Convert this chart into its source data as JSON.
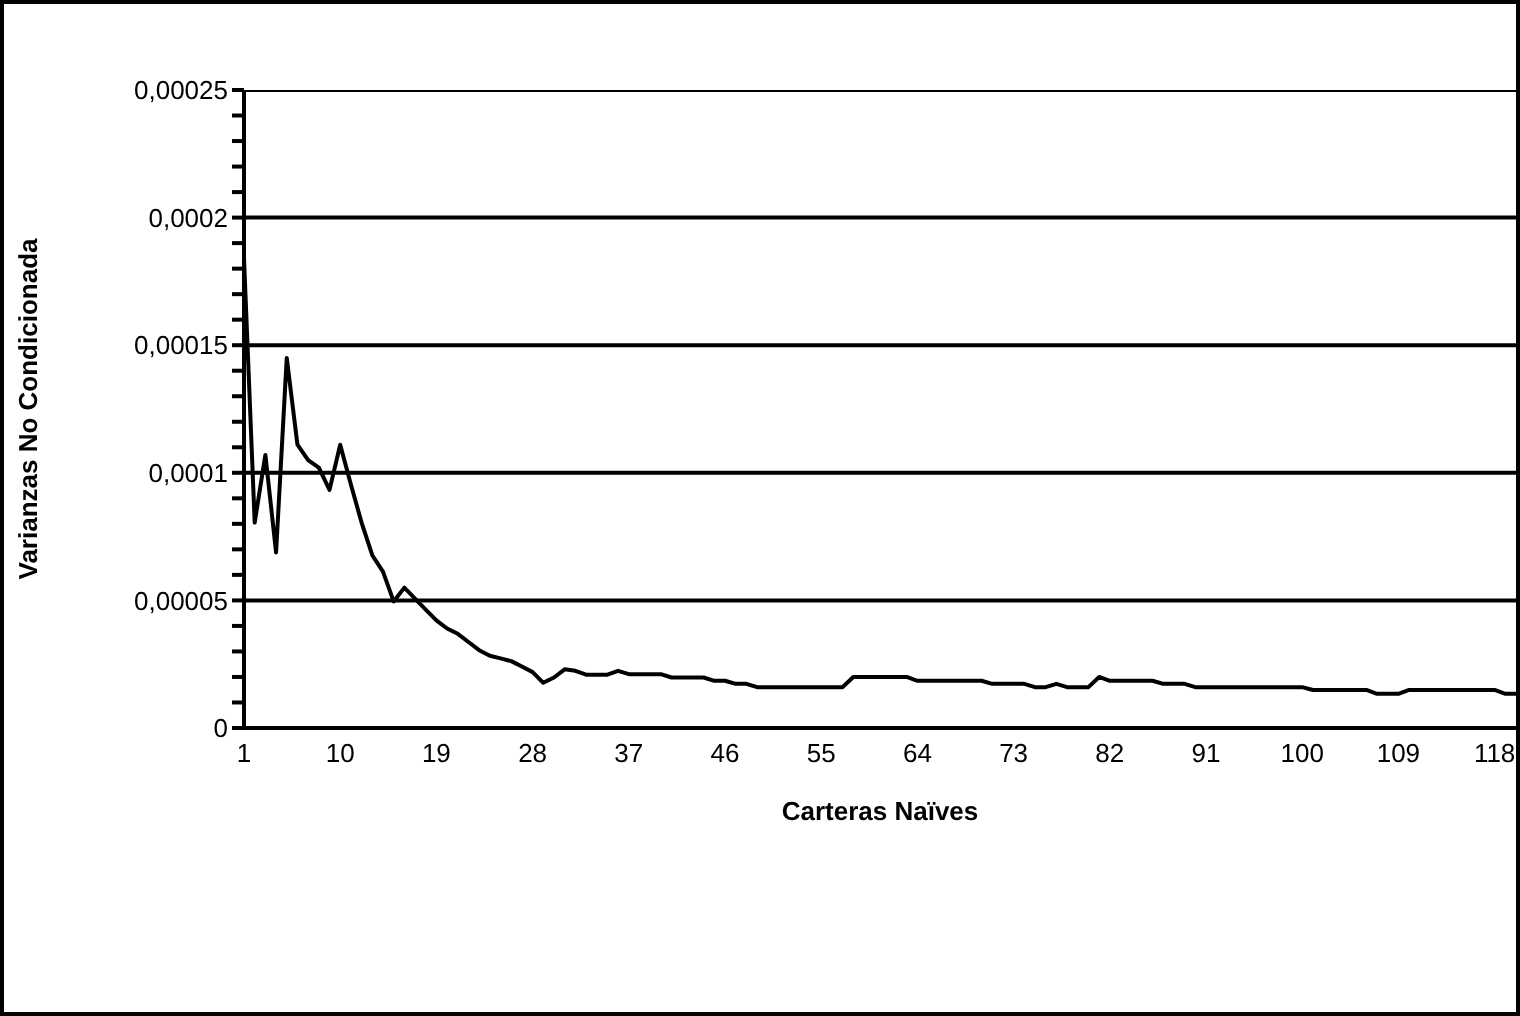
{
  "chart_data": {
    "type": "line",
    "xlabel": "Carteras Naïves",
    "ylabel": "Varianzas No Condicionada",
    "categories": [
      "1",
      null,
      null,
      null,
      null,
      null,
      null,
      null,
      null,
      "10",
      null,
      null,
      null,
      null,
      null,
      null,
      null,
      null,
      "19",
      null,
      null,
      null,
      null,
      null,
      null,
      null,
      null,
      "28",
      null,
      null,
      null,
      null,
      null,
      null,
      null,
      null,
      "37",
      null,
      null,
      null,
      null,
      null,
      null,
      null,
      null,
      "46",
      null,
      null,
      null,
      null,
      null,
      null,
      null,
      null,
      "55",
      null,
      null,
      null,
      null,
      null,
      null,
      null,
      null,
      "64",
      null,
      null,
      null,
      null,
      null,
      null,
      null,
      null,
      "73",
      null,
      null,
      null,
      null,
      null,
      null,
      null,
      null,
      "82",
      null,
      null,
      null,
      null,
      null,
      null,
      null,
      null,
      "91",
      null,
      null,
      null,
      null,
      null,
      null,
      null,
      null,
      "100",
      null,
      null,
      null,
      null,
      null,
      null,
      null,
      null,
      "109",
      null,
      null,
      null,
      null,
      null,
      null,
      null,
      null,
      "118",
      null,
      null
    ],
    "series": [
      {
        "color": "#000000",
        "values": [
          0.000184,
          8.05e-05,
          0.000107,
          6.88e-05,
          0.000145,
          0.000111,
          0.000105,
          0.000102,
          9.33e-05,
          0.000111,
          9.54e-05,
          8.05e-05,
          6.77e-05,
          6.13e-05,
          4.96e-05,
          5.5e-05,
          5.07e-05,
          4.64e-05,
          4.22e-05,
          3.9e-05,
          3.69e-05,
          3.37e-05,
          3.05e-05,
          2.83e-05,
          2.73e-05,
          2.62e-05,
          2.41e-05,
          2.19e-05,
          1.77e-05,
          1.98e-05,
          2.3e-05,
          2.24e-05,
          2.09e-05,
          2.09e-05,
          2.09e-05,
          2.24e-05,
          2.11e-05,
          2.11e-05,
          2.11e-05,
          2.11e-05,
          1.98e-05,
          1.98e-05,
          1.98e-05,
          1.98e-05,
          1.85e-05,
          1.85e-05,
          1.73e-05,
          1.73e-05,
          1.6e-05,
          1.6e-05,
          1.6e-05,
          1.6e-05,
          1.6e-05,
          1.6e-05,
          1.6e-05,
          1.6e-05,
          1.6e-05,
          2e-05,
          2e-05,
          2e-05,
          2e-05,
          2e-05,
          2e-05,
          1.85e-05,
          1.85e-05,
          1.85e-05,
          1.85e-05,
          1.85e-05,
          1.85e-05,
          1.85e-05,
          1.73e-05,
          1.73e-05,
          1.73e-05,
          1.73e-05,
          1.6e-05,
          1.6e-05,
          1.73e-05,
          1.6e-05,
          1.6e-05,
          1.6e-05,
          2e-05,
          1.85e-05,
          1.85e-05,
          1.85e-05,
          1.85e-05,
          1.85e-05,
          1.73e-05,
          1.73e-05,
          1.73e-05,
          1.6e-05,
          1.6e-05,
          1.6e-05,
          1.6e-05,
          1.6e-05,
          1.6e-05,
          1.6e-05,
          1.6e-05,
          1.6e-05,
          1.6e-05,
          1.6e-05,
          1.49e-05,
          1.49e-05,
          1.49e-05,
          1.49e-05,
          1.49e-05,
          1.49e-05,
          1.34e-05,
          1.34e-05,
          1.34e-05,
          1.49e-05,
          1.49e-05,
          1.49e-05,
          1.49e-05,
          1.49e-05,
          1.49e-05,
          1.49e-05,
          1.49e-05,
          1.49e-05,
          1.34e-05,
          1.34e-05
        ]
      }
    ],
    "ylim": [
      0,
      0.00025
    ],
    "yticks": [
      {
        "value": 0,
        "label": "0"
      },
      {
        "value": 1e-05,
        "label": null
      },
      {
        "value": 2e-05,
        "label": null
      },
      {
        "value": 3e-05,
        "label": null
      },
      {
        "value": 4e-05,
        "label": null
      },
      {
        "value": 5e-05,
        "label": "0,00005"
      },
      {
        "value": 6e-05,
        "label": null
      },
      {
        "value": 7e-05,
        "label": null
      },
      {
        "value": 8e-05,
        "label": null
      },
      {
        "value": 9e-05,
        "label": null
      },
      {
        "value": 0.0001,
        "label": "0,0001"
      },
      {
        "value": 0.00011,
        "label": null
      },
      {
        "value": 0.00012,
        "label": null
      },
      {
        "value": 0.00013,
        "label": null
      },
      {
        "value": 0.00014,
        "label": null
      },
      {
        "value": 0.00015,
        "label": "0,00015"
      },
      {
        "value": 0.00016,
        "label": null
      },
      {
        "value": 0.00017,
        "label": null
      },
      {
        "value": 0.00018,
        "label": null
      },
      {
        "value": 0.00019,
        "label": null
      },
      {
        "value": 0.0002,
        "label": "0,0002"
      },
      {
        "value": 0.00021,
        "label": null
      },
      {
        "value": 0.00022,
        "label": null
      },
      {
        "value": 0.00023,
        "label": null
      },
      {
        "value": 0.00024,
        "label": null
      },
      {
        "value": 0.00025,
        "label": "0,00025"
      }
    ],
    "grid": "y",
    "marker": "none",
    "line_style": "solid",
    "legend": false
  }
}
